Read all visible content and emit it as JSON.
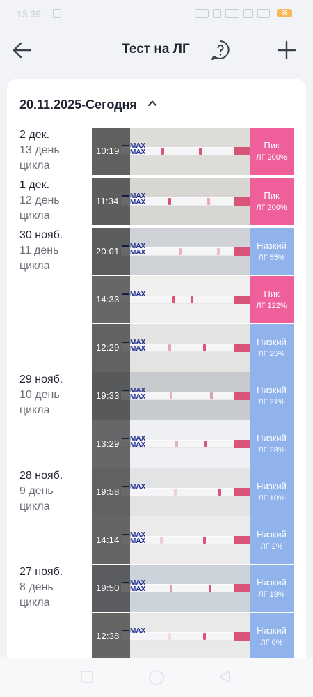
{
  "status_bar": {
    "time": "13:39",
    "battery": "56"
  },
  "header": {
    "title": "Тест на ЛГ"
  },
  "range": {
    "label": "20.11.2025-Сегодня"
  },
  "days": [
    {
      "date": "2 дек.",
      "cycle": "13 день\nцикла"
    },
    {
      "date": "1 дек.",
      "cycle": "12 день\nцикла"
    },
    {
      "date": "30 нояб.",
      "cycle": "11 день\nцикла"
    },
    {
      "date": "29 нояб.",
      "cycle": "10 день\nцикла"
    },
    {
      "date": "28 нояб.",
      "cycle": "9 день\nцикла"
    },
    {
      "date": "27 нояб.",
      "cycle": "8 день\nцикла"
    }
  ],
  "tests": [
    {
      "time": "10:19",
      "status": "Пик",
      "lh": "ЛГ 200%",
      "max_label": "MAX\nMAX",
      "color": "#ee5f9c"
    },
    {
      "time": "11:34",
      "status": "Пик",
      "lh": "ЛГ 200%",
      "max_label": "MAX\nMAX",
      "color": "#ee5f9c"
    },
    {
      "time": "20:01",
      "status": "Низкий",
      "lh": "ЛГ 55%",
      "max_label": "MAX\nMAX",
      "color": "#8fb3ea"
    },
    {
      "time": "14:33",
      "status": "Пик",
      "lh": "ЛГ 122%",
      "max_label": "MAX",
      "color": "#ee5f9c"
    },
    {
      "time": "12:29",
      "status": "Низкий",
      "lh": "ЛГ 25%",
      "max_label": "MAX\nMAX",
      "color": "#8fb3ea"
    },
    {
      "time": "19:33",
      "status": "Низкий",
      "lh": "ЛГ 21%",
      "max_label": "MAX\nMAX",
      "color": "#8fb3ea"
    },
    {
      "time": "13:29",
      "status": "Низкий",
      "lh": "ЛГ 28%",
      "max_label": "MAX\nMAX",
      "color": "#8fb3ea"
    },
    {
      "time": "19:58",
      "status": "Низкий",
      "lh": "ЛГ 10%",
      "max_label": "MAX",
      "color": "#8fb3ea"
    },
    {
      "time": "14:14",
      "status": "Низкий",
      "lh": "ЛГ 2%",
      "max_label": "MAX\nMAX",
      "color": "#8fb3ea"
    },
    {
      "time": "19:50",
      "status": "Низкий",
      "lh": "ЛГ 18%",
      "max_label": "MAX\nMAX",
      "color": "#8fb3ea"
    },
    {
      "time": "12:38",
      "status": "Низкий",
      "lh": "ЛГ 0%",
      "max_label": "MAX",
      "color": "#8fb3ea"
    }
  ],
  "colors": {
    "peak": "#ee5f9c",
    "low": "#8fb3ea",
    "test_band": "#d95577"
  },
  "icons": {
    "back": "arrow-left-icon",
    "help": "question-bubble-icon",
    "add": "plus-icon",
    "collapse": "chevron-up-icon"
  }
}
